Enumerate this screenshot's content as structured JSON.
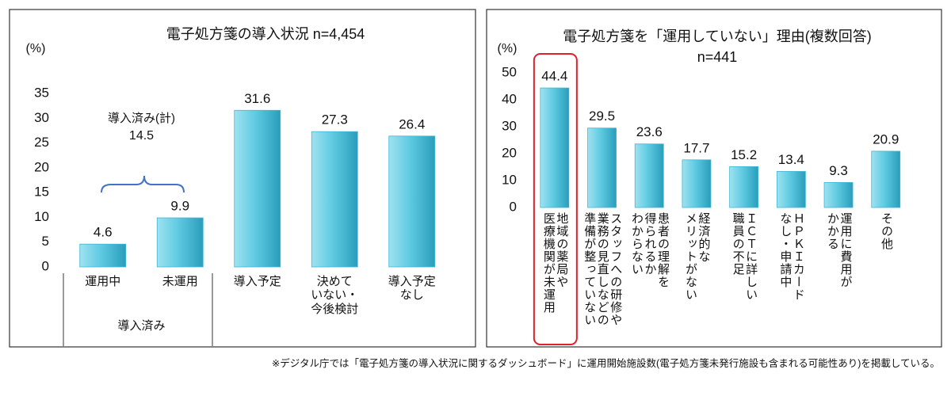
{
  "chart_data": [
    {
      "type": "bar",
      "title": "電子処方箋の導入状況 n=4,454",
      "unit": "(%)",
      "categories": [
        "運用中",
        "未運用",
        "導入予定",
        "決めて\nいない・\n今後検討",
        "導入予定\nなし"
      ],
      "values": [
        4.6,
        9.9,
        31.6,
        27.3,
        26.4
      ],
      "color": "#3db8d4",
      "ylim": [
        0,
        35
      ],
      "yticks": [
        0,
        5,
        10,
        15,
        20,
        25,
        30,
        35
      ],
      "grid": false,
      "group_label": "導入済み",
      "annotation": {
        "label": "導入済み(計)",
        "value": 14.5
      }
    },
    {
      "type": "bar",
      "title": "電子処方箋を「運用していない」理由(複数回答)",
      "subtitle": "n=441",
      "unit": "(%)",
      "categories": [
        "地域の薬局や\n医療機関が未運用",
        "スタッフへの研修や\n業務の見直しなどの\n準備が整っていない",
        "患者の理解を\n得られるか\nわからない",
        "経済的な\nメリットがない",
        "ＩＣＴに詳しい\n職員の不足",
        "ＨＰＫＩカード\nなし・申請中",
        "運用に費用が\nかかる",
        "その他"
      ],
      "values": [
        44.4,
        29.5,
        23.6,
        17.7,
        15.2,
        13.4,
        9.3,
        20.9
      ],
      "color": "#3db8d4",
      "ylim": [
        0,
        50
      ],
      "yticks": [
        0,
        10,
        20,
        30,
        40,
        50
      ],
      "grid": false,
      "highlight": 0,
      "highlight_color": "#e0202a"
    }
  ],
  "footnote": "※デジタル庁では「電子処方箋の導入状況に関するダッシュボード」に運用開始施設数(電子処方箋未発行施設も含まれる可能性あり)を掲載している。"
}
